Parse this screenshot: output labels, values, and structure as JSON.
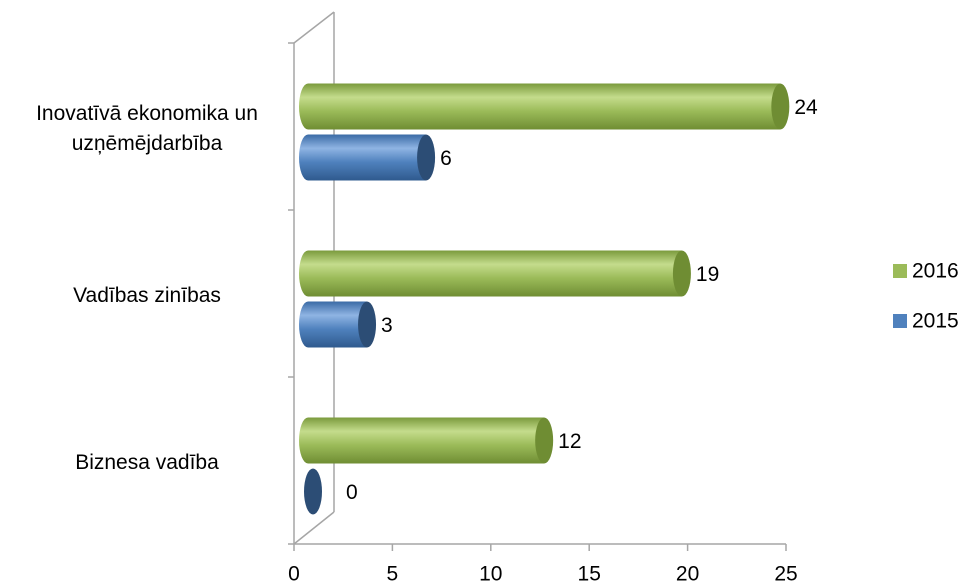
{
  "chart_data": {
    "type": "bar3d_horizontal",
    "categories": [
      "Inovatīvā ekonomika un uzņēmējdarbība",
      "Vadības zinības",
      "Biznesa vadība"
    ],
    "series": [
      {
        "name": "2016",
        "color": "#9bbb59",
        "values": [
          24,
          19,
          12
        ]
      },
      {
        "name": "2015",
        "color": "#4f81bd",
        "values": [
          6,
          3,
          0
        ]
      }
    ],
    "xlim": [
      0,
      25
    ],
    "xticks": [
      0,
      5,
      10,
      15,
      20,
      25
    ],
    "legend": "right"
  }
}
